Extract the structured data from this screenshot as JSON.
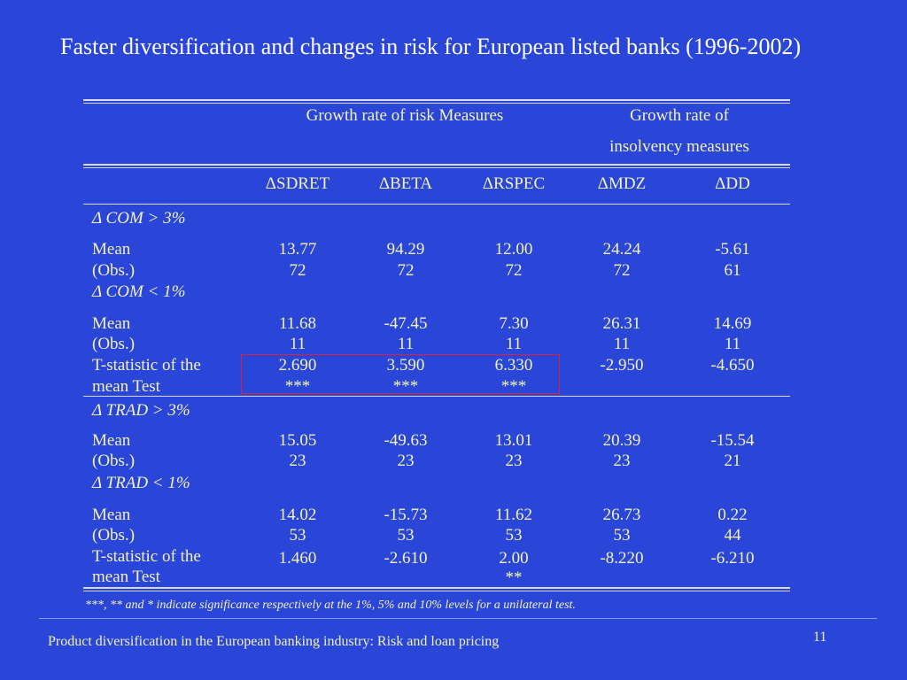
{
  "title": "Faster diversification and changes in risk for European listed banks (1996-2002)",
  "table": {
    "group_header_1": "Growth rate of risk Measures",
    "group_header_2_line1": "Growth rate of",
    "group_header_2_line2": "insolvency measures",
    "columns": [
      "ΔSDRET",
      "ΔBETA",
      "ΔRSPEC",
      "ΔMDZ",
      "ΔDD"
    ],
    "sections": [
      {
        "label": "Δ COM > 3%",
        "mean_label": "Mean",
        "obs_label": "(Obs.)",
        "mean": [
          "13.77",
          "94.29",
          "12.00",
          "24.24",
          "-5.61"
        ],
        "obs": [
          "72",
          "72",
          "72",
          "72",
          "61"
        ]
      },
      {
        "label": "Δ COM < 1%",
        "mean_label": "Mean",
        "obs_label": "(Obs.)",
        "mean": [
          "11.68",
          "-47.45",
          "7.30",
          "26.31",
          "14.69"
        ],
        "obs": [
          "11",
          "11",
          "11",
          "11",
          "11"
        ],
        "t_label_1": "T-statistic of the",
        "t_label_2": "mean Test",
        "t": [
          "2.690",
          "3.590",
          "6.330",
          "-2.950",
          "-4.650"
        ],
        "sig": [
          "***",
          "***",
          "***",
          "",
          ""
        ]
      },
      {
        "label": "Δ TRAD > 3%",
        "mean_label": "Mean",
        "obs_label": "(Obs.)",
        "mean": [
          "15.05",
          "-49.63",
          "13.01",
          "20.39",
          "-15.54"
        ],
        "obs": [
          "23",
          "23",
          "23",
          "23",
          "21"
        ]
      },
      {
        "label": "Δ TRAD < 1%",
        "mean_label": "Mean",
        "obs_label": "(Obs.)",
        "mean": [
          "14.02",
          "-15.73",
          "11.62",
          "26.73",
          "0.22"
        ],
        "obs": [
          "53",
          "53",
          "53",
          "53",
          "44"
        ],
        "t_label_1": "T-statistic of the",
        "t_label_2": "mean Test",
        "t": [
          "1.460",
          "-2.610",
          "2.00",
          "-8.220",
          "-6.210"
        ],
        "sig": [
          "",
          "",
          "**",
          "",
          ""
        ]
      }
    ]
  },
  "note": "***, ** and * indicate significance respectively at the 1%, 5% and 10% levels for a unilateral test.",
  "footer": "Product diversification in the European banking industry: Risk and loan pricing",
  "page_number": "11",
  "colors": {
    "background": "#2a46d8",
    "table_text": "#f2f2b8",
    "title_text": "#ffffff",
    "highlight_box": "#e0203a"
  }
}
